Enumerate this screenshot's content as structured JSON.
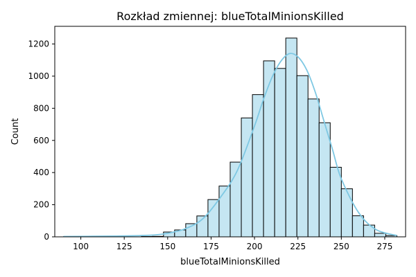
{
  "chart_data": {
    "type": "bar",
    "title": "Rozkład zmiennej: blueTotalMinionsKilled",
    "xlabel": "blueTotalMinionsKilled",
    "ylabel": "Count",
    "xlim": [
      85,
      287
    ],
    "ylim": [
      0,
      1310
    ],
    "x_ticks": [
      100,
      125,
      150,
      175,
      200,
      225,
      250,
      275
    ],
    "y_ticks": [
      0,
      200,
      400,
      600,
      800,
      1000,
      1200
    ],
    "bin_edges": [
      90,
      96.4,
      102.8,
      109.2,
      115.6,
      122.0,
      128.4,
      134.8,
      141.2,
      147.6,
      154.0,
      160.4,
      166.8,
      173.2,
      179.6,
      186.0,
      192.4,
      198.8,
      205.2,
      211.6,
      218.0,
      224.4,
      230.8,
      237.2,
      243.6,
      250.0,
      256.4,
      262.8,
      269.2,
      275.6,
      282.0
    ],
    "counts": [
      1,
      0,
      0,
      0,
      0,
      0,
      0,
      2,
      3,
      30,
      43,
      82,
      130,
      232,
      316,
      465,
      740,
      885,
      1095,
      1048,
      1237,
      1003,
      858,
      710,
      433,
      299,
      131,
      73,
      22,
      8
    ],
    "kde": {
      "x": [
        90,
        120,
        140,
        150,
        160,
        170,
        180,
        190,
        200,
        205,
        210,
        215,
        220,
        225,
        230,
        235,
        240,
        245,
        250,
        260,
        270,
        282
      ],
      "y": [
        2,
        5,
        10,
        22,
        50,
        110,
        240,
        410,
        690,
        850,
        990,
        1090,
        1140,
        1120,
        1040,
        900,
        720,
        540,
        360,
        150,
        45,
        8
      ]
    },
    "bar_fill": "#c5e6f2",
    "bar_edge": "#000000",
    "kde_color": "#7ec8e3",
    "grid": false,
    "legend": "none"
  }
}
